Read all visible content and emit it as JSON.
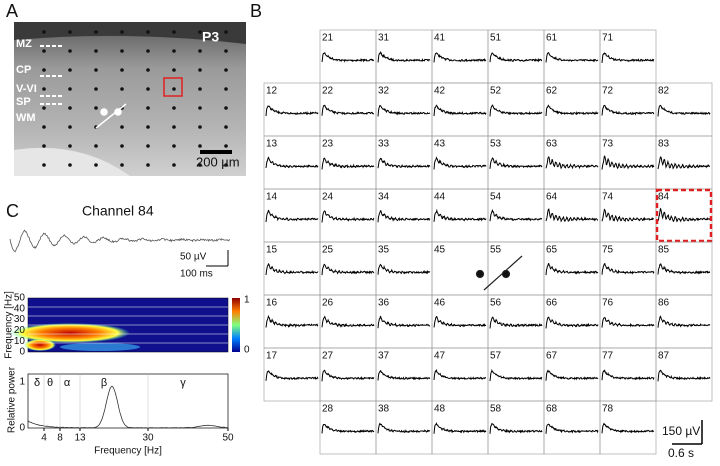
{
  "panel_a": {
    "label": "A",
    "layers": [
      "MZ",
      "CP",
      "V-VI",
      "SP",
      "WM"
    ],
    "age": "P3",
    "scale_bar": "200 µm"
  },
  "panel_b": {
    "label": "B",
    "rows": [
      [
        null,
        "21",
        "31",
        "41",
        "51",
        "61",
        "71",
        null
      ],
      [
        "12",
        "22",
        "32",
        "42",
        "52",
        "62",
        "72",
        "82"
      ],
      [
        "13",
        "23",
        "33",
        "43",
        "53",
        "63",
        "73",
        "83"
      ],
      [
        "14",
        "24",
        "34",
        "44",
        "54",
        "64",
        "74",
        "84"
      ],
      [
        "15",
        "25",
        "35",
        "45",
        "55",
        "65",
        "75",
        "85"
      ],
      [
        "16",
        "26",
        "36",
        "46",
        "56",
        "66",
        "76",
        "86"
      ],
      [
        "17",
        "27",
        "37",
        "47",
        "57",
        "67",
        "77",
        "87"
      ],
      [
        null,
        "28",
        "38",
        "48",
        "58",
        "68",
        "78",
        null
      ]
    ],
    "scale_amplitude": "150 µV",
    "scale_time": "0.6 s"
  },
  "panel_c": {
    "label": "C",
    "title": "Channel 84",
    "scale_amplitude": "50 µV",
    "scale_time": "100 ms",
    "spectrogram": {
      "y_label": "Frequency [Hz]",
      "yticks": [
        "50",
        "40",
        "30",
        "20",
        "10",
        "0"
      ],
      "colorbar_ticks": [
        "1",
        "0"
      ]
    },
    "power": {
      "y_label": "Relative power",
      "yticks": [
        "1",
        "0"
      ],
      "x_label": "Frequency [Hz]",
      "xticks": [
        "4",
        "8",
        "13",
        "30",
        "50"
      ],
      "bands": [
        "δ",
        "θ",
        "α",
        "β",
        "γ"
      ]
    }
  }
}
